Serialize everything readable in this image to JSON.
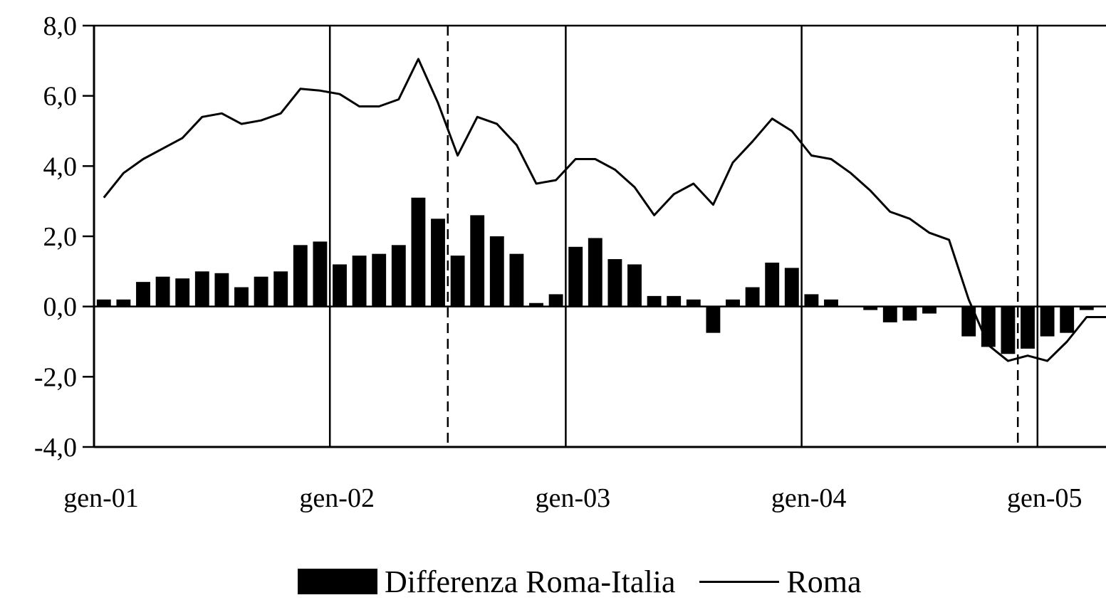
{
  "chart_data": {
    "type": "bar+line",
    "title": "",
    "xlabel": "",
    "ylabel": "",
    "ylim": [
      -4.0,
      8.0
    ],
    "yticks": [
      "8,0",
      "6,0",
      "4,0",
      "2,0",
      "0,0",
      "-2,0",
      "-4,0"
    ],
    "ytick_values": [
      8,
      6,
      4,
      2,
      0,
      -2,
      -4
    ],
    "xtick_labels": [
      "gen-01",
      "gen-02",
      "gen-03",
      "gen-04",
      "gen-05"
    ],
    "x_start": "gen-01",
    "x_end": "mag-05",
    "vertical_lines": [
      {
        "at": "gen-02",
        "style": "solid"
      },
      {
        "at": "lug-02",
        "style": "dashed"
      },
      {
        "at": "gen-03",
        "style": "solid"
      },
      {
        "at": "gen-04",
        "style": "solid"
      },
      {
        "at": "dic-04",
        "style": "dashed"
      },
      {
        "at": "gen-05",
        "style": "solid"
      }
    ],
    "series": [
      {
        "name": "Differenza Roma-Italia",
        "kind": "bar",
        "color": "#000000",
        "values": [
          0.2,
          0.2,
          0.7,
          0.85,
          0.8,
          1.0,
          0.95,
          0.55,
          0.85,
          1.0,
          1.75,
          1.85,
          1.2,
          1.45,
          1.5,
          1.75,
          3.1,
          2.5,
          1.45,
          2.6,
          2.0,
          1.5,
          0.1,
          0.35,
          1.7,
          1.95,
          1.35,
          1.2,
          0.3,
          0.3,
          0.2,
          -0.75,
          0.2,
          0.55,
          1.25,
          1.1,
          0.35,
          0.2,
          0.0,
          -0.1,
          -0.45,
          -0.4,
          -0.2,
          0.0,
          -0.85,
          -1.15,
          -1.35,
          -1.2,
          -0.85,
          -0.75,
          -0.1
        ]
      },
      {
        "name": "Roma",
        "kind": "line",
        "color": "#000000",
        "values": [
          3.1,
          3.8,
          4.2,
          4.5,
          4.8,
          5.4,
          5.5,
          5.2,
          5.3,
          5.5,
          6.2,
          6.15,
          6.05,
          5.7,
          5.7,
          5.9,
          7.05,
          5.8,
          4.3,
          5.4,
          5.2,
          4.6,
          3.5,
          3.6,
          4.2,
          4.2,
          3.9,
          3.4,
          2.6,
          3.2,
          3.5,
          2.9,
          4.1,
          4.7,
          5.35,
          5.0,
          4.3,
          4.2,
          3.8,
          3.3,
          2.7,
          2.5,
          2.1,
          1.9,
          0.2,
          -1.1,
          -1.55,
          -1.4,
          -1.55,
          -1.0,
          -0.3,
          -0.3
        ]
      }
    ]
  }
}
